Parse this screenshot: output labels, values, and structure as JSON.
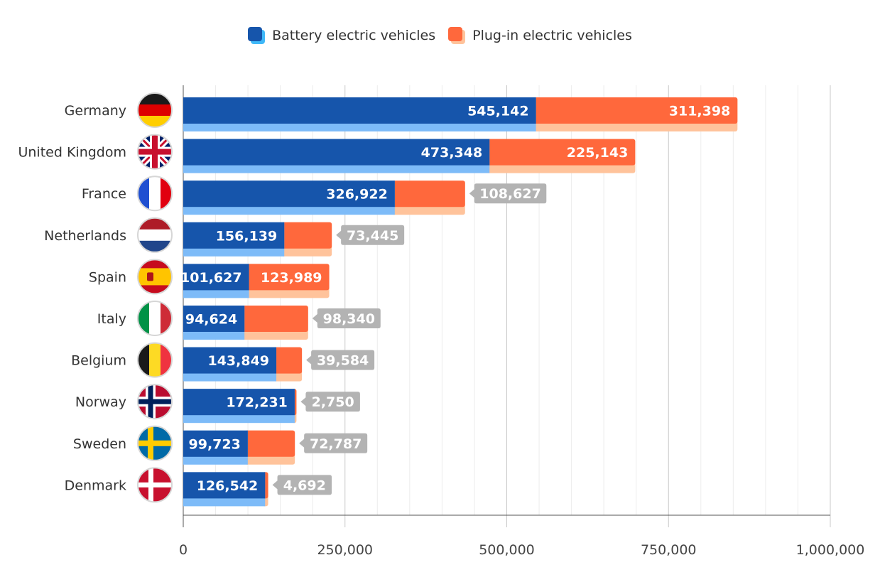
{
  "chart_data": {
    "type": "bar",
    "orientation": "horizontal",
    "stacked": true,
    "categories": [
      "Germany",
      "United Kingdom",
      "France",
      "Netherlands",
      "Spain",
      "Italy",
      "Belgium",
      "Norway",
      "Sweden",
      "Denmark"
    ],
    "series": [
      {
        "name": "Battery electric vehicles",
        "color": "#1655ab",
        "shade": "#7dbbf8",
        "values": [
          545142,
          473348,
          326922,
          156139,
          101627,
          94624,
          143849,
          172231,
          99723,
          126542
        ]
      },
      {
        "name": "Plug-in electric vehicles",
        "color": "#ff683c",
        "shade": "#ffc39b",
        "values": [
          311398,
          225143,
          108627,
          73445,
          123989,
          98340,
          39584,
          2750,
          72787,
          4692
        ]
      }
    ],
    "xlim": [
      0,
      1000000
    ],
    "xticks": [
      0,
      250000,
      500000,
      750000,
      1000000
    ],
    "xtick_labels": [
      "0",
      "250,000",
      "500,000",
      "750,000",
      "1,000,000"
    ],
    "grid": true,
    "legend_placement": "top-center",
    "category_icons": [
      "flag-germany",
      "flag-united-kingdom",
      "flag-france",
      "flag-netherlands",
      "flag-spain",
      "flag-italy",
      "flag-belgium",
      "flag-norway",
      "flag-sweden",
      "flag-denmark"
    ]
  }
}
